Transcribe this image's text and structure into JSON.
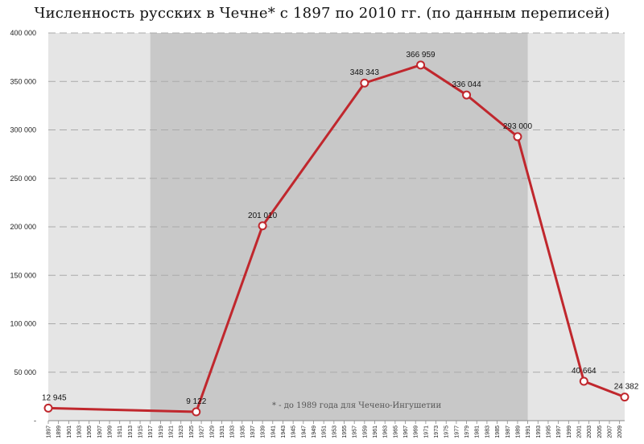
{
  "chart_data": {
    "type": "line",
    "title": "Численность русских в Чечне* с 1897 по 2010 гг. (по данным переписей)",
    "xlabel": "",
    "ylabel": "",
    "xlim": [
      1897,
      2010
    ],
    "ylim": [
      0,
      400000
    ],
    "grid": true,
    "y_ticks": [
      0,
      50000,
      100000,
      150000,
      200000,
      250000,
      300000,
      350000,
      400000
    ],
    "y_tick_labels": [
      "-",
      "50 000",
      "100 000",
      "150 000",
      "200 000",
      "250 000",
      "300 000",
      "350 000",
      "400 000"
    ],
    "x_tick_labels": [
      "1897",
      "1899",
      "1901",
      "1903",
      "1905",
      "1907",
      "1909",
      "1911",
      "1913",
      "1915",
      "1917",
      "1919",
      "1921",
      "1923",
      "1925",
      "1927",
      "1929",
      "1931",
      "1933",
      "1935",
      "1937",
      "1939",
      "1941",
      "1943",
      "1945",
      "1947",
      "1949",
      "1951",
      "1953",
      "1955",
      "1957",
      "1959",
      "1961",
      "1963",
      "1965",
      "1967",
      "1969",
      "1971",
      "1973",
      "1975",
      "1977",
      "1979",
      "1981",
      "1983",
      "1985",
      "1987",
      "1989",
      "1991",
      "1993",
      "1995",
      "1997",
      "1999",
      "2001",
      "2003",
      "2005",
      "2007",
      "2009"
    ],
    "shaded_period": [
      1917,
      1991
    ],
    "series": [
      {
        "x": [
          1897,
          1926,
          1939,
          1959,
          1970,
          1979,
          1989,
          2002,
          2010
        ],
        "values": [
          12945,
          9122,
          201010,
          348343,
          366959,
          336044,
          293000,
          40664,
          24382
        ],
        "labels": [
          "12 945",
          "9 122",
          "201 010",
          "348 343",
          "366 959",
          "336 044",
          "293 000",
          "40 664",
          "24 382"
        ]
      }
    ],
    "annotation": "* -  до 1989 года для Чечено-Ингушетии",
    "colors": {
      "line": "#c0272d",
      "marker_fill": "#ffffff",
      "shade_outer": "#e5e5e5",
      "shade_inner": "#c8c8c8",
      "grid": "#aaaaaa"
    }
  }
}
